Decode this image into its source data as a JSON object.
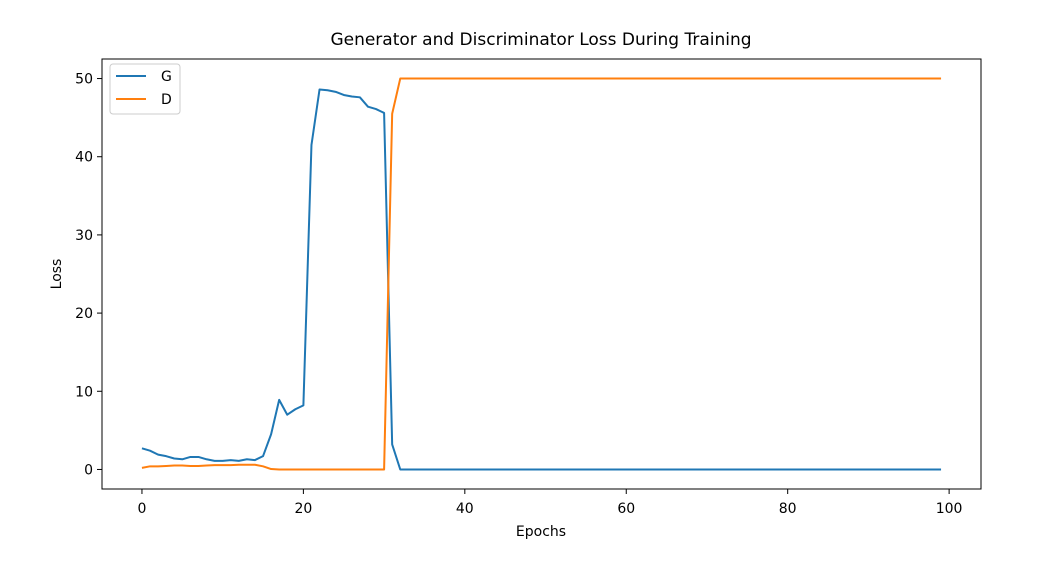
{
  "chart_data": {
    "type": "line",
    "title": "Generator and Discriminator Loss During Training",
    "xlabel": "Epochs",
    "ylabel": "Loss",
    "xlim": [
      -4.95,
      103.95
    ],
    "ylim": [
      -2.5,
      52.5
    ],
    "xticks": [
      0,
      20,
      40,
      60,
      80,
      100
    ],
    "yticks": [
      0,
      10,
      20,
      30,
      40,
      50
    ],
    "grid": false,
    "legend_position": "top-left",
    "series": [
      {
        "name": "G",
        "color": "#1f77b4",
        "x": [
          0,
          1,
          2,
          3,
          4,
          5,
          6,
          7,
          8,
          9,
          10,
          11,
          12,
          13,
          14,
          15,
          16,
          17,
          18,
          19,
          20,
          21,
          22,
          23,
          24,
          25,
          26,
          27,
          28,
          29,
          30,
          31,
          32,
          99
        ],
        "values": [
          2.7,
          2.4,
          1.9,
          1.7,
          1.4,
          1.3,
          1.6,
          1.6,
          1.3,
          1.1,
          1.1,
          1.2,
          1.1,
          1.3,
          1.2,
          1.7,
          4.5,
          8.9,
          7.0,
          7.7,
          8.2,
          41.5,
          48.6,
          48.5,
          48.3,
          47.9,
          47.7,
          47.6,
          46.4,
          46.1,
          45.6,
          3.2,
          0.0,
          0.0
        ]
      },
      {
        "name": "D",
        "color": "#ff7f0e",
        "x": [
          0,
          1,
          2,
          3,
          4,
          5,
          6,
          7,
          8,
          9,
          10,
          11,
          12,
          13,
          14,
          15,
          16,
          17,
          18,
          19,
          20,
          21,
          22,
          23,
          24,
          25,
          26,
          27,
          28,
          29,
          30,
          31,
          32,
          99
        ],
        "values": [
          0.2,
          0.4,
          0.4,
          0.45,
          0.5,
          0.5,
          0.45,
          0.45,
          0.5,
          0.55,
          0.55,
          0.55,
          0.6,
          0.6,
          0.6,
          0.4,
          0.05,
          0.0,
          0.0,
          0.0,
          0.0,
          0.0,
          0.0,
          0.0,
          0.0,
          0.0,
          0.0,
          0.0,
          0.0,
          0.0,
          0.0,
          45.5,
          50.0,
          50.0
        ]
      }
    ]
  }
}
